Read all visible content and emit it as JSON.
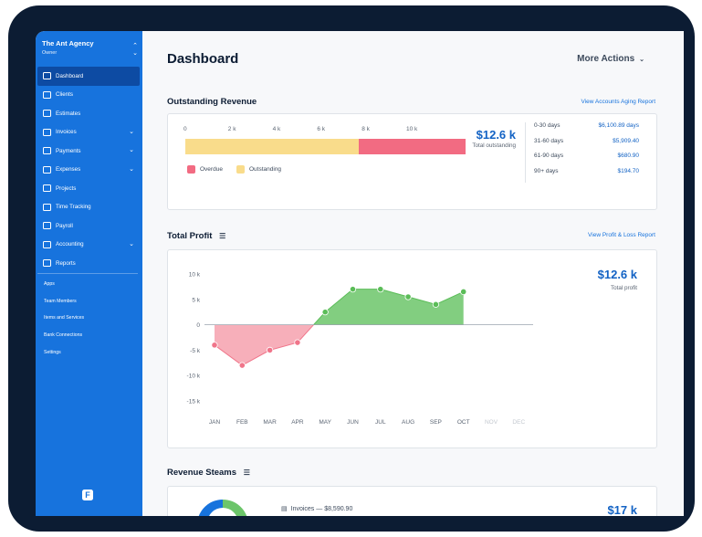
{
  "sidebar": {
    "company": "The Ant Agency",
    "role": "Owner",
    "items": [
      {
        "label": "Dashboard",
        "active": true,
        "has_chevron": false
      },
      {
        "label": "Clients",
        "has_chevron": false
      },
      {
        "label": "Estimates",
        "has_chevron": false
      },
      {
        "label": "Invoices",
        "has_chevron": true
      },
      {
        "label": "Payments",
        "has_chevron": true
      },
      {
        "label": "Expenses",
        "has_chevron": true
      },
      {
        "label": "Projects",
        "has_chevron": false
      },
      {
        "label": "Time Tracking",
        "has_chevron": false
      },
      {
        "label": "Payroll",
        "has_chevron": false
      },
      {
        "label": "Accounting",
        "has_chevron": true
      },
      {
        "label": "Reports",
        "has_chevron": false
      }
    ],
    "secondary": [
      "Apps",
      "Team Members",
      "Items and Services",
      "Bank Connections",
      "Settings"
    ]
  },
  "header": {
    "title": "Dashboard",
    "more_actions": "More Actions"
  },
  "outstanding": {
    "title": "Outstanding Revenue",
    "link": "View Accounts Aging Report",
    "ticks": [
      "0",
      "2 k",
      "4 k",
      "6 k",
      "8 k",
      "10 k"
    ],
    "outstanding_value": 7.8,
    "overdue_value": 4.8,
    "axis_max": 10,
    "legend_overdue": "Overdue",
    "legend_outstanding": "Outstanding",
    "total": "$12.6 k",
    "total_label": "Total outstanding",
    "aging": [
      {
        "days": "0-30 days",
        "value": "$6,100.89 days"
      },
      {
        "days": "31-60 days",
        "value": "$5,909.40"
      },
      {
        "days": "61-90 days",
        "value": "$680.90"
      },
      {
        "days": "90+ days",
        "value": "$194.70"
      }
    ],
    "colors": {
      "overdue": "#f26b82",
      "outstanding": "#f9dc8b"
    }
  },
  "profit": {
    "title": "Total Profit",
    "link": "View Profit & Loss Report",
    "total": "$12.6 k",
    "total_label": "Total profit"
  },
  "steams": {
    "title": "Revenue Steams",
    "invoices": "Invoices — $8,590.90",
    "total": "$17 k"
  },
  "chart_data": {
    "type": "area",
    "categories": [
      "JAN",
      "FEB",
      "MAR",
      "APR",
      "MAY",
      "JUN",
      "JUL",
      "AUG",
      "SEP",
      "OCT",
      "NOV",
      "DEC"
    ],
    "values": [
      -4,
      -8,
      -5,
      -3.5,
      2.5,
      7,
      7,
      5.5,
      4,
      6.5,
      null,
      null
    ],
    "y_ticks": [
      "10 k",
      "5 k",
      "0",
      "-5 k",
      "-10 k",
      "-15 k"
    ],
    "ylim": [
      -15,
      10
    ],
    "grid": false,
    "colors": {
      "positive": "#6cc56a",
      "negative": "#f6a1ae",
      "pos_point": "#5bbd58",
      "neg_point": "#f0758a"
    }
  }
}
